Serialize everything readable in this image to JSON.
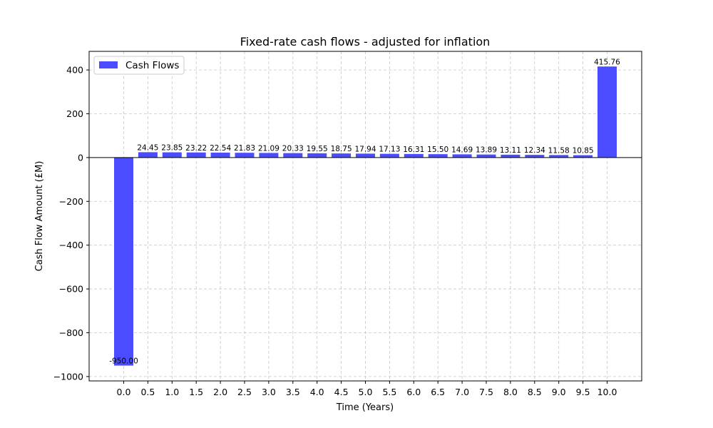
{
  "chart_data": {
    "type": "bar",
    "title": "Fixed-rate cash flows - adjusted for inflation",
    "xlabel": "Time (Years)",
    "ylabel": "Cash Flow Amount (£M)",
    "categories": [
      "0.0",
      "0.5",
      "1.0",
      "1.5",
      "2.0",
      "2.5",
      "3.0",
      "3.5",
      "4.0",
      "4.5",
      "5.0",
      "5.5",
      "6.0",
      "6.5",
      "7.0",
      "7.5",
      "8.0",
      "8.5",
      "9.0",
      "9.5",
      "10.0"
    ],
    "series": [
      {
        "name": "Cash Flows",
        "color": "#4b4bff",
        "values": [
          -950.0,
          24.45,
          23.85,
          23.22,
          22.54,
          21.83,
          21.09,
          20.33,
          19.55,
          18.75,
          17.94,
          17.13,
          16.31,
          15.5,
          14.69,
          13.89,
          13.11,
          12.34,
          11.58,
          10.85,
          415.76
        ],
        "labels": [
          "-950.00",
          "24.45",
          "23.85",
          "23.22",
          "22.54",
          "21.83",
          "21.09",
          "20.33",
          "19.55",
          "18.75",
          "17.94",
          "17.13",
          "16.31",
          "15.50",
          "14.69",
          "13.89",
          "13.11",
          "12.34",
          "11.58",
          "10.85",
          "415.76"
        ]
      }
    ],
    "ylim": [
      -1020,
      485
    ],
    "yticks": [
      400,
      200,
      0,
      -200,
      -400,
      -600,
      -800,
      -1000
    ],
    "ytick_labels": [
      "400",
      "200",
      "0",
      "−200",
      "−400",
      "−600",
      "−800",
      "−1000"
    ],
    "grid": true,
    "zero_line": true,
    "legend": {
      "position": "top-left",
      "entries": [
        "Cash Flows"
      ]
    }
  }
}
